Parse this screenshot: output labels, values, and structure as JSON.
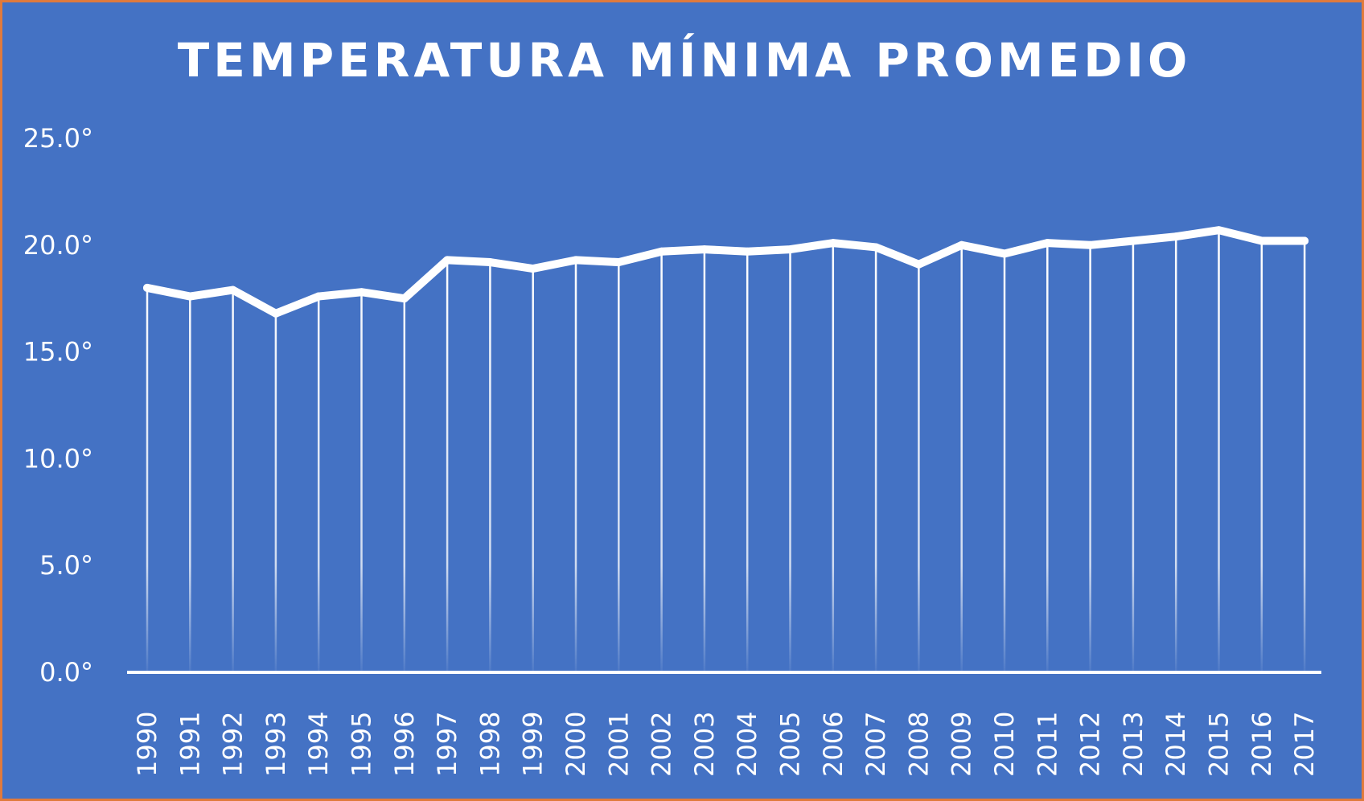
{
  "chart_data": {
    "type": "line",
    "title": "TEMPERATURA MÍNIMA PROMEDIO",
    "xlabel": "",
    "ylabel": "",
    "categories": [
      "1990",
      "1991",
      "1992",
      "1993",
      "1994",
      "1995",
      "1996",
      "1997",
      "1998",
      "1999",
      "2000",
      "2001",
      "2002",
      "2003",
      "2004",
      "2005",
      "2006",
      "2007",
      "2008",
      "2009",
      "2010",
      "2011",
      "2012",
      "2013",
      "2014",
      "2015",
      "2016",
      "2017"
    ],
    "series": [
      {
        "values": [
          18.0,
          17.6,
          17.9,
          16.8,
          17.6,
          17.8,
          17.5,
          19.3,
          19.2,
          18.9,
          19.3,
          19.2,
          19.7,
          19.8,
          19.7,
          19.8,
          20.1,
          19.9,
          19.1,
          20.0,
          19.6,
          20.1,
          20.0,
          20.2,
          20.4,
          20.7,
          20.2,
          20.2
        ]
      }
    ],
    "ylim": [
      0,
      25
    ],
    "yticks": [
      0,
      5,
      10,
      15,
      20,
      25
    ],
    "ytick_labels": [
      "0.0°",
      "5.0°",
      "10.0°",
      "15.0°",
      "20.0°",
      "25.0°"
    ],
    "grid": false,
    "drop_lines": true,
    "legend": "none",
    "colors": {
      "background": "#4472c4",
      "border": "#e07a3c",
      "line": "#ffffff",
      "text": "#ffffff"
    }
  }
}
